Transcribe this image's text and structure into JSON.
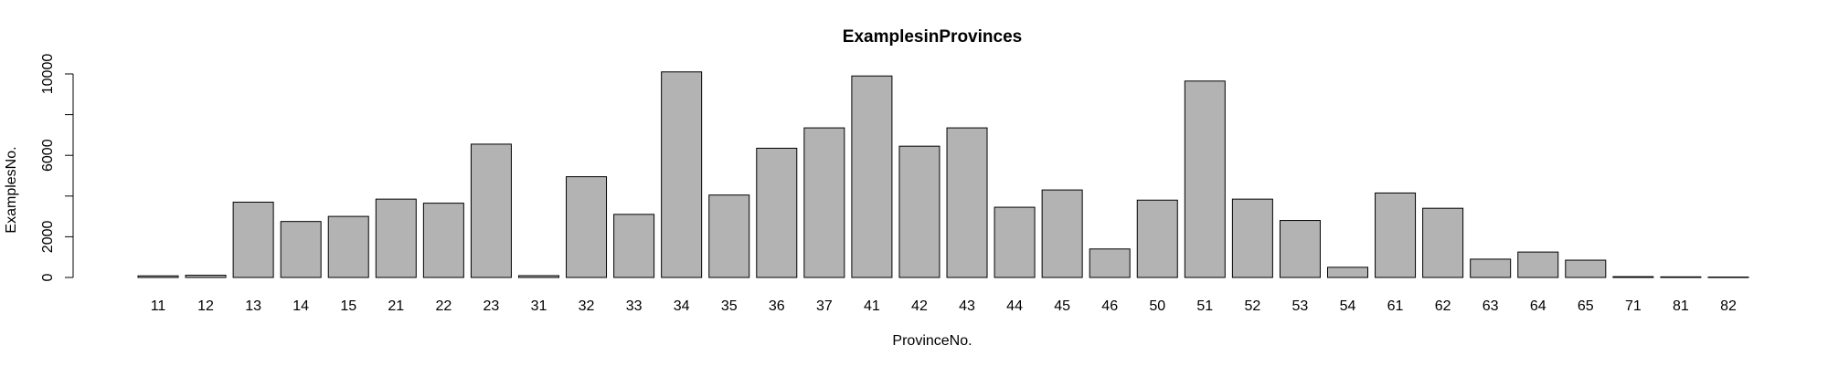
{
  "chart_data": {
    "type": "bar",
    "title": "ExamplesinProvinces",
    "xlabel": "ProvinceNo.",
    "ylabel": "ExamplesNo.",
    "categories": [
      "11",
      "12",
      "13",
      "14",
      "15",
      "21",
      "22",
      "23",
      "31",
      "32",
      "33",
      "34",
      "35",
      "36",
      "37",
      "41",
      "42",
      "43",
      "44",
      "45",
      "46",
      "50",
      "51",
      "52",
      "53",
      "54",
      "61",
      "62",
      "63",
      "64",
      "65",
      "71",
      "81",
      "82"
    ],
    "values": [
      80,
      110,
      3700,
      2750,
      3000,
      3850,
      3650,
      6550,
      90,
      4950,
      3100,
      10100,
      4050,
      6350,
      7350,
      9900,
      6450,
      7350,
      3450,
      4300,
      1400,
      3800,
      9650,
      3850,
      2800,
      500,
      4150,
      3400,
      900,
      1250,
      850,
      40,
      30,
      20
    ],
    "yticks": [
      0,
      2000,
      6000,
      10000
    ],
    "yticks_minor": [
      4000,
      8000
    ],
    "ylim": [
      0,
      10200
    ],
    "bar_color": "#b3b3b3",
    "grid": false,
    "legend": "none"
  }
}
